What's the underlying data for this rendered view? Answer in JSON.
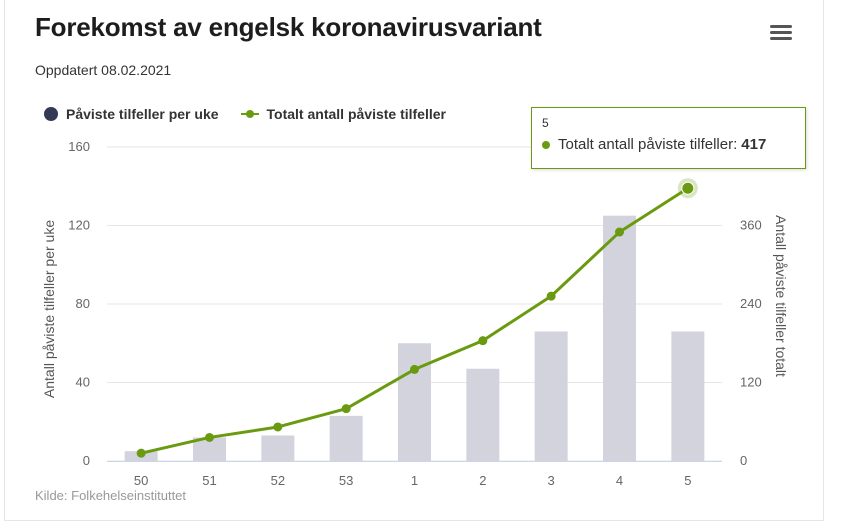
{
  "header": {
    "title": "Forekomst av engelsk koronavirusvariant",
    "subtitle": "Oppdatert 08.02.2021",
    "menu_icon": "hamburger-menu-icon"
  },
  "source": "Kilde: Folkehelseinstituttet",
  "tooltip": {
    "x": "5",
    "series": "Totalt antall påviste tilfeller:",
    "value": "417"
  },
  "chart_data": {
    "type": "bar",
    "categories": [
      "50",
      "51",
      "52",
      "53",
      "1",
      "2",
      "3",
      "4",
      "5"
    ],
    "series": [
      {
        "name": "Påviste tilfeller per uke",
        "type": "bar",
        "axis": "left",
        "color": "#d3d3de",
        "legend_color": "#343956",
        "values": [
          5,
          12,
          13,
          23,
          60,
          47,
          66,
          125,
          66
        ]
      },
      {
        "name": "Totalt antall påviste tilfeller",
        "type": "line",
        "axis": "right",
        "color": "#6a9a0f",
        "values": [
          12,
          36,
          52,
          80,
          140,
          184,
          252,
          350,
          417
        ]
      }
    ],
    "ylabel_left": "Antall påviste tilfeller per uke",
    "ylabel_right": "Antall påviste tilfeller totalt",
    "ylim_left": [
      0,
      160
    ],
    "yticks_left": [
      "0",
      "40",
      "80",
      "120",
      "160"
    ],
    "ylim_right": [
      0,
      480
    ],
    "yticks_right": [
      "0",
      "120",
      "240",
      "360"
    ],
    "grid": true,
    "legend_position": "top-left",
    "highlighted_category": "5"
  }
}
